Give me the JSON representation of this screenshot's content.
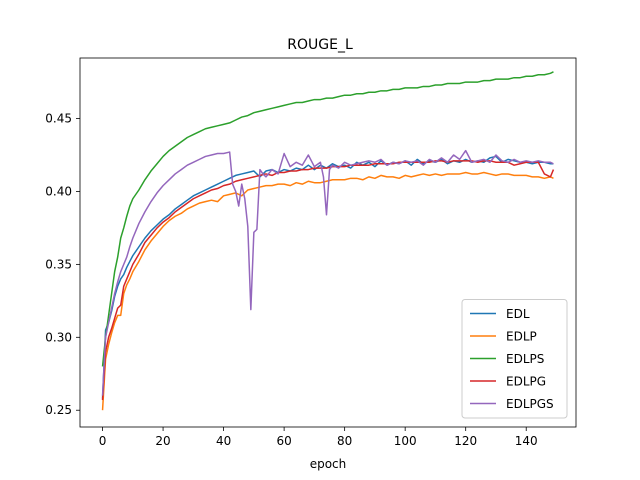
{
  "chart_data": {
    "type": "line",
    "title": "ROUGE_L",
    "xlabel": "epoch",
    "ylabel": "",
    "xlim": [
      -7.45,
      156.45
    ],
    "ylim": [
      0.2385,
      0.4915
    ],
    "xticks": [
      0,
      20,
      40,
      60,
      80,
      100,
      120,
      140
    ],
    "yticks": [
      0.25,
      0.3,
      0.35,
      0.4,
      0.45
    ],
    "ytick_labels": [
      "0.25",
      "0.30",
      "0.35",
      "0.40",
      "0.45"
    ],
    "grid": false,
    "legend_position": "lower right",
    "series": [
      {
        "name": "EDL",
        "color": "#1f77b4",
        "x": [
          0,
          1,
          2,
          3,
          4,
          5,
          6,
          7,
          8,
          9,
          10,
          12,
          14,
          16,
          18,
          20,
          22,
          24,
          26,
          28,
          30,
          32,
          34,
          36,
          38,
          40,
          42,
          44,
          46,
          48,
          50,
          52,
          54,
          56,
          58,
          60,
          62,
          64,
          66,
          68,
          70,
          72,
          74,
          76,
          78,
          80,
          82,
          84,
          86,
          88,
          90,
          92,
          94,
          96,
          98,
          100,
          102,
          104,
          106,
          108,
          110,
          112,
          114,
          116,
          118,
          120,
          122,
          124,
          126,
          128,
          130,
          132,
          134,
          136,
          138,
          140,
          142,
          144,
          146,
          148,
          149
        ],
        "y": [
          0.258,
          0.305,
          0.31,
          0.318,
          0.328,
          0.335,
          0.34,
          0.343,
          0.348,
          0.352,
          0.356,
          0.362,
          0.368,
          0.373,
          0.377,
          0.381,
          0.384,
          0.388,
          0.391,
          0.394,
          0.397,
          0.399,
          0.401,
          0.403,
          0.405,
          0.407,
          0.409,
          0.411,
          0.412,
          0.413,
          0.414,
          0.41,
          0.414,
          0.415,
          0.413,
          0.415,
          0.414,
          0.416,
          0.415,
          0.418,
          0.415,
          0.418,
          0.416,
          0.419,
          0.417,
          0.418,
          0.416,
          0.42,
          0.418,
          0.42,
          0.417,
          0.421,
          0.418,
          0.42,
          0.419,
          0.421,
          0.418,
          0.422,
          0.419,
          0.421,
          0.42,
          0.422,
          0.419,
          0.421,
          0.42,
          0.422,
          0.42,
          0.421,
          0.42,
          0.423,
          0.424,
          0.42,
          0.422,
          0.421,
          0.42,
          0.42,
          0.419,
          0.42,
          0.42,
          0.419,
          0.419
        ]
      },
      {
        "name": "EDLP",
        "color": "#ff7f0e",
        "x": [
          0,
          1,
          2,
          3,
          4,
          5,
          6,
          7,
          8,
          9,
          10,
          12,
          14,
          16,
          18,
          20,
          22,
          24,
          26,
          28,
          30,
          32,
          34,
          36,
          38,
          40,
          42,
          44,
          46,
          48,
          50,
          52,
          54,
          56,
          58,
          60,
          62,
          64,
          66,
          68,
          70,
          72,
          74,
          76,
          78,
          80,
          82,
          84,
          86,
          88,
          90,
          92,
          94,
          96,
          98,
          100,
          102,
          104,
          106,
          108,
          110,
          112,
          114,
          116,
          118,
          120,
          122,
          124,
          126,
          128,
          130,
          132,
          134,
          136,
          138,
          140,
          142,
          144,
          146,
          148,
          149
        ],
        "y": [
          0.25,
          0.285,
          0.295,
          0.303,
          0.31,
          0.315,
          0.315,
          0.33,
          0.336,
          0.34,
          0.345,
          0.352,
          0.36,
          0.366,
          0.371,
          0.376,
          0.38,
          0.383,
          0.385,
          0.388,
          0.39,
          0.392,
          0.393,
          0.394,
          0.393,
          0.397,
          0.398,
          0.399,
          0.397,
          0.401,
          0.402,
          0.403,
          0.404,
          0.404,
          0.405,
          0.405,
          0.404,
          0.406,
          0.405,
          0.407,
          0.406,
          0.406,
          0.407,
          0.408,
          0.408,
          0.408,
          0.409,
          0.409,
          0.408,
          0.41,
          0.409,
          0.411,
          0.41,
          0.41,
          0.409,
          0.411,
          0.41,
          0.411,
          0.412,
          0.411,
          0.412,
          0.411,
          0.412,
          0.412,
          0.412,
          0.413,
          0.412,
          0.412,
          0.413,
          0.412,
          0.411,
          0.412,
          0.412,
          0.411,
          0.411,
          0.411,
          0.41,
          0.41,
          0.409,
          0.41,
          0.409
        ]
      },
      {
        "name": "EDLPS",
        "color": "#2ca02c",
        "x": [
          0,
          1,
          2,
          3,
          4,
          5,
          6,
          7,
          8,
          9,
          10,
          12,
          14,
          16,
          18,
          20,
          22,
          24,
          26,
          28,
          30,
          32,
          34,
          36,
          38,
          40,
          42,
          44,
          46,
          48,
          50,
          52,
          54,
          56,
          58,
          60,
          62,
          64,
          66,
          68,
          70,
          72,
          74,
          76,
          78,
          80,
          82,
          84,
          86,
          88,
          90,
          92,
          94,
          96,
          98,
          100,
          102,
          104,
          106,
          108,
          110,
          112,
          114,
          116,
          118,
          120,
          122,
          124,
          126,
          128,
          130,
          132,
          134,
          136,
          138,
          140,
          142,
          144,
          146,
          148,
          149
        ],
        "y": [
          0.28,
          0.3,
          0.315,
          0.33,
          0.345,
          0.355,
          0.368,
          0.375,
          0.383,
          0.39,
          0.395,
          0.401,
          0.408,
          0.414,
          0.419,
          0.424,
          0.428,
          0.431,
          0.434,
          0.437,
          0.439,
          0.441,
          0.443,
          0.444,
          0.445,
          0.446,
          0.447,
          0.449,
          0.451,
          0.452,
          0.454,
          0.455,
          0.456,
          0.457,
          0.458,
          0.459,
          0.46,
          0.461,
          0.461,
          0.462,
          0.463,
          0.463,
          0.464,
          0.464,
          0.465,
          0.466,
          0.466,
          0.467,
          0.467,
          0.468,
          0.468,
          0.469,
          0.469,
          0.47,
          0.47,
          0.471,
          0.471,
          0.471,
          0.472,
          0.472,
          0.473,
          0.473,
          0.474,
          0.474,
          0.474,
          0.475,
          0.475,
          0.475,
          0.476,
          0.476,
          0.477,
          0.477,
          0.477,
          0.478,
          0.478,
          0.479,
          0.479,
          0.48,
          0.48,
          0.481,
          0.482
        ]
      },
      {
        "name": "EDLPG",
        "color": "#d62728",
        "x": [
          0,
          1,
          2,
          3,
          4,
          5,
          6,
          7,
          8,
          9,
          10,
          12,
          14,
          16,
          18,
          20,
          22,
          24,
          26,
          28,
          30,
          32,
          34,
          36,
          38,
          40,
          42,
          44,
          46,
          48,
          50,
          52,
          54,
          56,
          58,
          60,
          62,
          64,
          66,
          68,
          70,
          72,
          74,
          76,
          78,
          80,
          82,
          84,
          86,
          88,
          90,
          92,
          94,
          96,
          98,
          100,
          102,
          104,
          106,
          108,
          110,
          112,
          114,
          116,
          118,
          120,
          122,
          124,
          126,
          128,
          130,
          132,
          134,
          136,
          138,
          140,
          142,
          144,
          146,
          148,
          149
        ],
        "y": [
          0.257,
          0.29,
          0.3,
          0.306,
          0.313,
          0.32,
          0.322,
          0.335,
          0.34,
          0.345,
          0.35,
          0.357,
          0.365,
          0.37,
          0.375,
          0.379,
          0.382,
          0.386,
          0.389,
          0.392,
          0.395,
          0.397,
          0.399,
          0.401,
          0.402,
          0.404,
          0.405,
          0.407,
          0.408,
          0.409,
          0.41,
          0.411,
          0.412,
          0.411,
          0.413,
          0.413,
          0.414,
          0.414,
          0.415,
          0.415,
          0.416,
          0.416,
          0.416,
          0.417,
          0.417,
          0.417,
          0.418,
          0.418,
          0.418,
          0.418,
          0.419,
          0.419,
          0.419,
          0.419,
          0.42,
          0.42,
          0.42,
          0.42,
          0.42,
          0.42,
          0.421,
          0.421,
          0.42,
          0.421,
          0.421,
          0.421,
          0.421,
          0.42,
          0.421,
          0.421,
          0.42,
          0.42,
          0.42,
          0.418,
          0.419,
          0.42,
          0.42,
          0.42,
          0.412,
          0.41,
          0.415
        ]
      },
      {
        "name": "EDLPGS",
        "color": "#9467bd",
        "x": [
          0,
          1,
          2,
          3,
          4,
          5,
          6,
          7,
          8,
          9,
          10,
          12,
          14,
          16,
          18,
          20,
          22,
          24,
          26,
          28,
          30,
          32,
          34,
          36,
          38,
          40,
          42,
          43,
          44,
          45,
          46,
          47,
          48,
          49,
          50,
          51,
          52,
          53,
          54,
          56,
          58,
          60,
          62,
          64,
          66,
          68,
          70,
          72,
          73,
          74,
          75,
          76,
          78,
          80,
          82,
          84,
          86,
          88,
          90,
          92,
          94,
          96,
          98,
          100,
          102,
          104,
          106,
          108,
          110,
          112,
          114,
          116,
          118,
          120,
          122,
          124,
          126,
          128,
          130,
          132,
          134,
          136,
          138,
          140,
          142,
          144,
          146,
          148,
          149
        ],
        "y": [
          0.26,
          0.3,
          0.31,
          0.32,
          0.33,
          0.338,
          0.345,
          0.35,
          0.355,
          0.362,
          0.368,
          0.378,
          0.386,
          0.393,
          0.399,
          0.404,
          0.408,
          0.412,
          0.415,
          0.418,
          0.42,
          0.422,
          0.424,
          0.425,
          0.426,
          0.426,
          0.427,
          0.405,
          0.4,
          0.39,
          0.405,
          0.395,
          0.376,
          0.319,
          0.372,
          0.374,
          0.415,
          0.412,
          0.41,
          0.415,
          0.412,
          0.426,
          0.417,
          0.42,
          0.418,
          0.425,
          0.417,
          0.42,
          0.41,
          0.384,
          0.415,
          0.418,
          0.416,
          0.42,
          0.418,
          0.419,
          0.42,
          0.421,
          0.42,
          0.422,
          0.418,
          0.42,
          0.419,
          0.421,
          0.42,
          0.421,
          0.418,
          0.422,
          0.42,
          0.423,
          0.42,
          0.425,
          0.422,
          0.428,
          0.42,
          0.421,
          0.422,
          0.42,
          0.425,
          0.421,
          0.42,
          0.422,
          0.42,
          0.421,
          0.42,
          0.421,
          0.42,
          0.42,
          0.419
        ]
      }
    ]
  }
}
